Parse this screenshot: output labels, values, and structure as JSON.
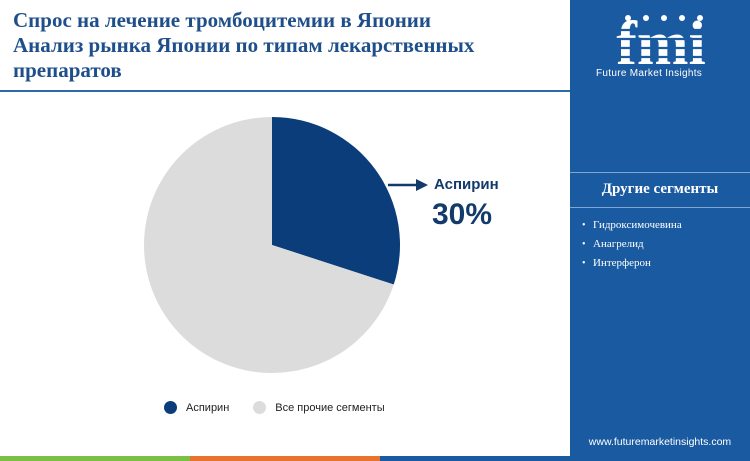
{
  "title_lines": [
    "Спрос на лечение тромбоцитемии в Японии",
    "Анализ рынка Японии по типам лекарственных",
    "препаратов"
  ],
  "brand": {
    "logo_text": "fmi",
    "tagline": "Future Market Insights",
    "website": "www.futuremarketinsights.com"
  },
  "sidebar": {
    "segments_title": "Другие сегменты",
    "segments": [
      "Гидроксимочевина",
      "Анагрелид",
      "Интерферон"
    ]
  },
  "callout": {
    "label": "Аспирин",
    "value": "30%"
  },
  "colors": {
    "aspirin": "#0b3d7a",
    "others": "#dcdcdc",
    "sidebar": "#1a5aa0",
    "title": "#1f4f8a",
    "bar_green": "#7cbf45",
    "bar_orange": "#e8732c",
    "bar_blue": "#1a5aa0"
  },
  "chart_data": {
    "type": "pie",
    "title": "",
    "labels": [
      "Аспирин",
      "Все прочие сегменты"
    ],
    "values": [
      30,
      70
    ],
    "legend_position": "bottom"
  }
}
